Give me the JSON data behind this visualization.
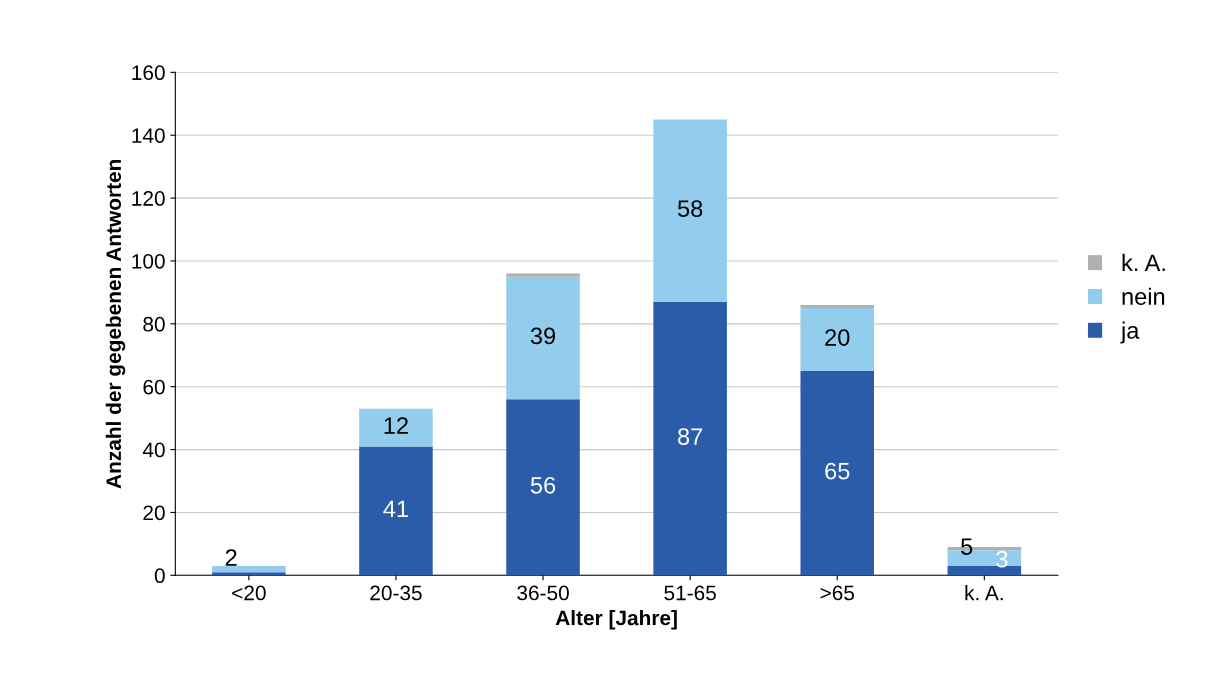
{
  "chart_data": {
    "type": "bar",
    "stacked": true,
    "xlabel": "Alter [Jahre]",
    "ylabel": "Anzahl der gegebenen Antworten",
    "categories": [
      "<20",
      "20-35",
      "36-50",
      "51-65",
      ">65",
      "k. A."
    ],
    "series": [
      {
        "name": "ja",
        "color": "#2a5caa",
        "values": [
          1,
          41,
          56,
          87,
          65,
          3
        ],
        "value_labels": [
          null,
          "41",
          "56",
          "87",
          "65",
          "3"
        ]
      },
      {
        "name": "nein",
        "color": "#93cdee",
        "values": [
          2,
          12,
          39,
          58,
          20,
          5
        ],
        "value_labels": [
          "2",
          "12",
          "39",
          "58",
          "20",
          "5"
        ]
      },
      {
        "name": "k. A.",
        "color": "#b0b0b0",
        "values": [
          0,
          0,
          1,
          0,
          1,
          1
        ]
      }
    ],
    "ylim": [
      0,
      160
    ],
    "yticks": [
      0,
      20,
      40,
      60,
      80,
      100,
      120,
      140,
      160
    ],
    "grid": "y",
    "legend": "right"
  }
}
